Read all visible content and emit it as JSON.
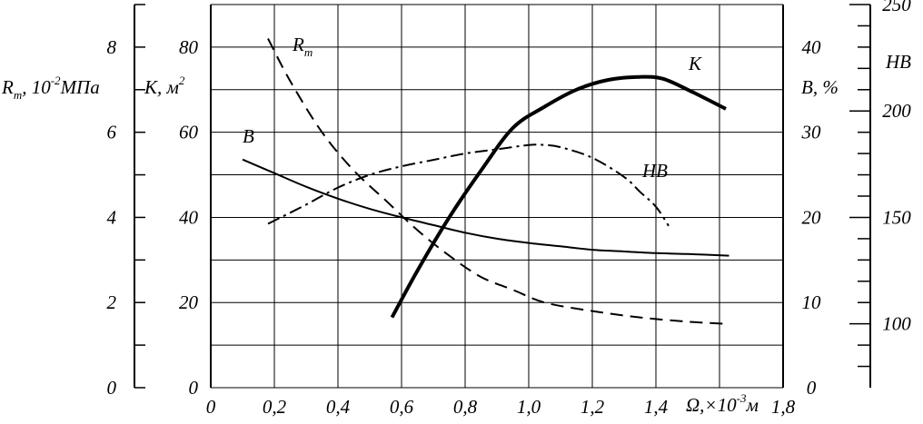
{
  "chart_data": {
    "type": "line",
    "grid": true,
    "x_axis": {
      "label_main": "Ω,×10",
      "label_sup": "-3",
      "label_unit": "м",
      "range": [
        0,
        1.8
      ],
      "ticks": [
        "0",
        "0,2",
        "0,4",
        "0,6",
        "0,8",
        "1,0",
        "1,2",
        "1,4",
        "1,6",
        "1,8"
      ]
    },
    "y_axes": {
      "rm": {
        "label_main": "R",
        "label_sub": "т",
        "label_rest": ", 10",
        "label_sup": "-2",
        "label_unit": "МПа",
        "range": [
          0,
          9
        ],
        "ticks": [
          "0",
          "2",
          "4",
          "6",
          "8"
        ]
      },
      "k": {
        "label_main": "К, м",
        "label_sup": "2",
        "range": [
          0,
          90
        ],
        "ticks": [
          "0",
          "20",
          "40",
          "60",
          "80"
        ]
      },
      "b": {
        "label": "В, %",
        "range": [
          0,
          45
        ],
        "ticks": [
          "0",
          "10",
          "20",
          "30",
          "40"
        ]
      },
      "hb": {
        "label": "НВ",
        "range": [
          70,
          250
        ],
        "ticks": [
          "100",
          "150",
          "200",
          "250"
        ]
      }
    },
    "series": [
      {
        "name": "R",
        "name_sub": "т",
        "axis": "rm",
        "style": "dashed",
        "x": [
          0.18,
          0.25,
          0.35,
          0.45,
          0.55,
          0.65,
          0.75,
          0.85,
          0.95,
          1.05,
          1.2,
          1.35,
          1.5,
          1.62
        ],
        "y": [
          8.2,
          7.2,
          6.0,
          5.1,
          4.4,
          3.7,
          3.1,
          2.6,
          2.3,
          2.0,
          1.8,
          1.65,
          1.55,
          1.5
        ]
      },
      {
        "name": "К",
        "axis": "k",
        "style": "bold",
        "x": [
          0.57,
          0.65,
          0.75,
          0.85,
          0.95,
          1.05,
          1.15,
          1.25,
          1.35,
          1.42,
          1.5,
          1.62
        ],
        "y": [
          16.5,
          27.5,
          40.0,
          51.0,
          61.0,
          66.0,
          70.0,
          72.3,
          73.0,
          72.6,
          70.0,
          65.5
        ]
      },
      {
        "name": "В",
        "axis": "b",
        "style": "solid",
        "x": [
          0.1,
          0.2,
          0.3,
          0.4,
          0.5,
          0.6,
          0.7,
          0.8,
          0.9,
          1.0,
          1.1,
          1.2,
          1.3,
          1.4,
          1.5,
          1.63
        ],
        "y": [
          26.8,
          25.2,
          23.6,
          22.2,
          21.0,
          20.0,
          19.1,
          18.2,
          17.5,
          17.0,
          16.6,
          16.2,
          16.0,
          15.8,
          15.7,
          15.5
        ]
      },
      {
        "name": "НВ",
        "axis": "hb",
        "style": "dashdot",
        "x": [
          0.18,
          0.3,
          0.4,
          0.5,
          0.6,
          0.7,
          0.8,
          0.9,
          1.0,
          1.05,
          1.1,
          1.2,
          1.3,
          1.35,
          1.4,
          1.44
        ],
        "y": [
          147,
          156,
          164,
          170,
          174,
          177,
          180,
          182,
          184,
          184,
          183,
          178,
          169,
          162,
          155,
          146
        ]
      }
    ]
  }
}
